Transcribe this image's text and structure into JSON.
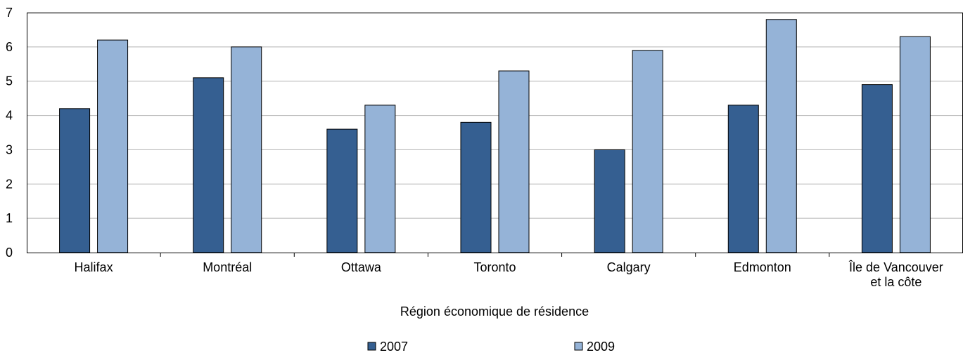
{
  "chart_data": {
    "type": "bar",
    "title": "",
    "xlabel": "Région économique de résidence",
    "ylabel": "",
    "ylim": [
      0,
      7
    ],
    "yticks": [
      0,
      1,
      2,
      3,
      4,
      5,
      6,
      7
    ],
    "grid": true,
    "legend_position": "bottom",
    "categories": [
      [
        "Halifax"
      ],
      [
        "Montréal"
      ],
      [
        "Ottawa"
      ],
      [
        "Toronto"
      ],
      [
        "Calgary"
      ],
      [
        "Edmonton"
      ],
      [
        "Île de Vancouver",
        "et la côte"
      ]
    ],
    "series": [
      {
        "name": "2007",
        "color": "#355f91",
        "values": [
          4.2,
          5.1,
          3.6,
          3.8,
          3.0,
          4.3,
          4.9
        ]
      },
      {
        "name": "2009",
        "color": "#95b3d7",
        "values": [
          6.2,
          6.0,
          4.3,
          5.3,
          5.9,
          6.8,
          6.3
        ]
      }
    ]
  }
}
